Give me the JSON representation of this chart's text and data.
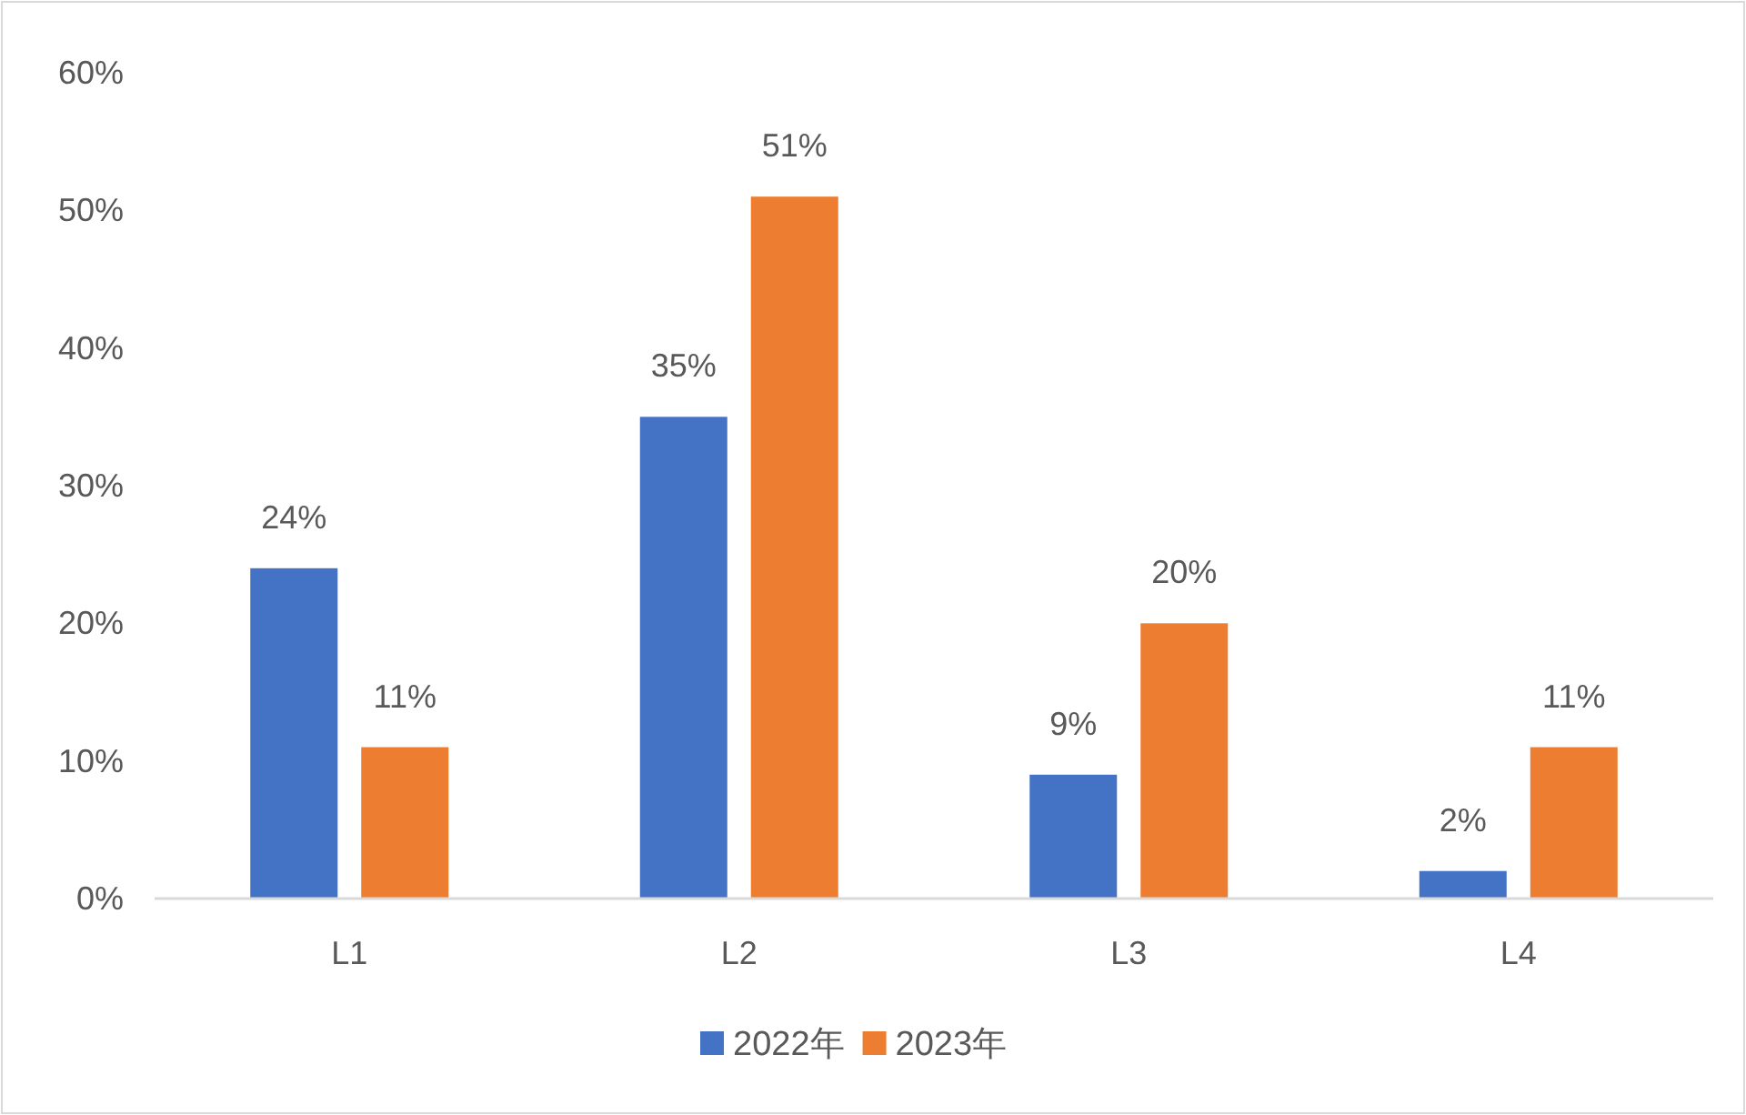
{
  "chart_data": {
    "type": "bar",
    "categories": [
      "L1",
      "L2",
      "L3",
      "L4"
    ],
    "series": [
      {
        "name": "2022年",
        "color": "#4472c4",
        "values": [
          24,
          35,
          9,
          2
        ],
        "value_labels": [
          "24%",
          "35%",
          "9%",
          "2%"
        ]
      },
      {
        "name": "2023年",
        "color": "#ed7d31",
        "values": [
          11,
          51,
          20,
          11
        ],
        "value_labels": [
          "11%",
          "51%",
          "20%",
          "11%"
        ]
      }
    ],
    "ylim": [
      0,
      60
    ],
    "yticks": [
      {
        "value": 0,
        "label": "0%"
      },
      {
        "value": 10,
        "label": "10%"
      },
      {
        "value": 20,
        "label": "20%"
      },
      {
        "value": 30,
        "label": "30%"
      },
      {
        "value": 40,
        "label": "40%"
      },
      {
        "value": 50,
        "label": "50%"
      },
      {
        "value": 60,
        "label": "60%"
      }
    ],
    "legend": "bottom"
  }
}
